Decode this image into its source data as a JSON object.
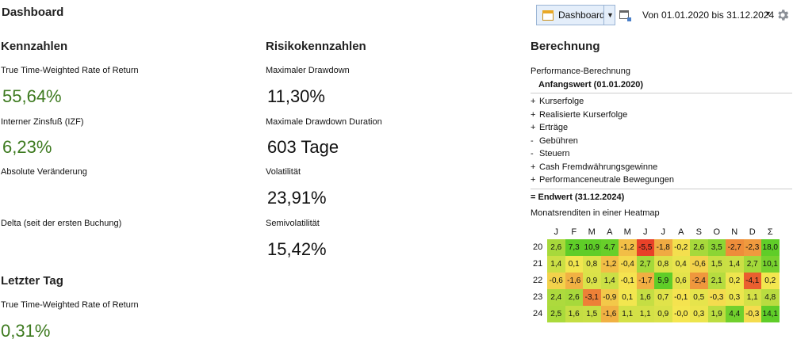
{
  "header": {
    "title": "Dashboard",
    "dashboard_select_label": "Dashboard",
    "date_range": "Von 01.01.2020 bis 31.12.2024"
  },
  "kennzahlen": {
    "title": "Kennzahlen",
    "twr_label": "True Time-Weighted Rate of Return",
    "twr_value": "55,64%",
    "izf_label": "Interner Zinsfuß (IZF)",
    "izf_value": "6,23%",
    "abs_label": "Absolute Veränderung",
    "delta_label": "Delta (seit der ersten Buchung)"
  },
  "letzter_tag": {
    "title": "Letzter Tag",
    "twr_label": "True Time-Weighted Rate of Return",
    "twr_value": "0,31%"
  },
  "risiko": {
    "title": "Risikokennzahlen",
    "max_dd_label": "Maximaler Drawdown",
    "max_dd_value": "11,30%",
    "max_dd_duration_label": "Maximale Drawdown Duration",
    "max_dd_duration_value": "603 Tage",
    "vola_label": "Volatilität",
    "vola_value": "23,91%",
    "semivola_label": "Semivolatilität",
    "semivola_value": "15,42%"
  },
  "berechnung": {
    "title": "Berechnung",
    "subtitle": "Performance-Berechnung",
    "start_label": "Anfangswert (01.01.2020)",
    "items": [
      {
        "sign": "+",
        "label": "Kurserfolge"
      },
      {
        "sign": "+",
        "label": "Realisierte Kurserfolge"
      },
      {
        "sign": "+",
        "label": "Erträge"
      },
      {
        "sign": "-",
        "label": "Gebühren"
      },
      {
        "sign": "-",
        "label": "Steuern"
      },
      {
        "sign": "+",
        "label": "Cash Fremdwährungsgewinne"
      },
      {
        "sign": "+",
        "label": "Performanceneutrale Bewegungen"
      }
    ],
    "end_label": "= Endwert (31.12.2024)"
  },
  "heatmap": {
    "title": "Monatsrenditen in einer Heatmap",
    "months": [
      "J",
      "F",
      "M",
      "A",
      "M",
      "J",
      "J",
      "A",
      "S",
      "O",
      "N",
      "D",
      "Σ"
    ],
    "rows": [
      {
        "year": "20",
        "values": [
          "2,6",
          "7,3",
          "10,9",
          "4,7",
          "-1,2",
          "-5,5",
          "-1,8",
          "-0,2",
          "2,6",
          "3,5",
          "-2,7",
          "-2,3",
          "18,0"
        ]
      },
      {
        "year": "21",
        "values": [
          "1,4",
          "0,1",
          "0,8",
          "-1,2",
          "-0,4",
          "2,7",
          "0,8",
          "0,4",
          "-0,6",
          "1,5",
          "1,4",
          "2,7",
          "10,1"
        ]
      },
      {
        "year": "22",
        "values": [
          "-0,6",
          "-1,6",
          "0,9",
          "1,4",
          "-0,1",
          "-1,7",
          "5,9",
          "0,6",
          "-2,4",
          "2,1",
          "0,2",
          "-4,1",
          "0,2"
        ]
      },
      {
        "year": "23",
        "values": [
          "2,4",
          "2,6",
          "-3,1",
          "-0,9",
          "0,1",
          "1,6",
          "0,7",
          "-0,1",
          "0,5",
          "-0,3",
          "0,3",
          "1,1",
          "4,8"
        ]
      },
      {
        "year": "24",
        "values": [
          "2,5",
          "1,6",
          "1,5",
          "-1,6",
          "1,1",
          "1,1",
          "0,9",
          "-0,0",
          "0,3",
          "1,9",
          "4,4",
          "-0,3",
          "14,1"
        ]
      }
    ]
  }
}
